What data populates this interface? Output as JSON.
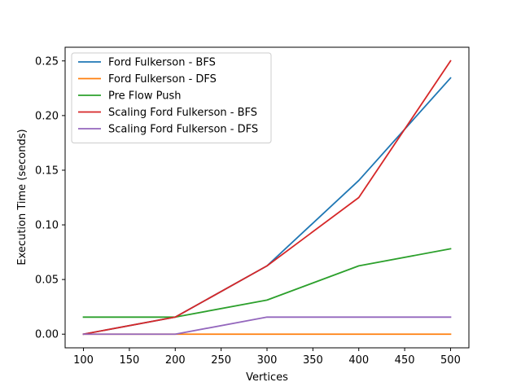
{
  "chart_data": {
    "type": "line",
    "title": "",
    "xlabel": "Vertices",
    "ylabel": "Execution Time (seconds)",
    "x": [
      100,
      200,
      300,
      400,
      500
    ],
    "xlim": [
      80,
      520
    ],
    "ylim": [
      -0.0125,
      0.2625
    ],
    "xticks": [
      100,
      150,
      200,
      250,
      300,
      350,
      400,
      450,
      500
    ],
    "yticks": [
      0.0,
      0.05,
      0.1,
      0.15,
      0.2,
      0.25
    ],
    "ytick_labels": [
      "0.00",
      "0.05",
      "0.10",
      "0.15",
      "0.20",
      "0.25"
    ],
    "grid": false,
    "legend_position": "top-left",
    "series": [
      {
        "name": "Ford Fulkerson - BFS",
        "color": "#1f77b4",
        "values": [
          0.0,
          0.0156,
          0.0625,
          0.1406,
          0.2344
        ]
      },
      {
        "name": "Ford Fulkerson - DFS",
        "color": "#ff7f0e",
        "values": [
          0.0,
          0.0,
          0.0,
          0.0,
          0.0
        ]
      },
      {
        "name": "Pre Flow Push",
        "color": "#2ca02c",
        "values": [
          0.0156,
          0.0156,
          0.0312,
          0.0625,
          0.0781
        ]
      },
      {
        "name": "Scaling Ford Fulkerson - BFS",
        "color": "#d62728",
        "values": [
          0.0,
          0.0156,
          0.0625,
          0.125,
          0.25
        ]
      },
      {
        "name": "Scaling Ford Fulkerson - DFS",
        "color": "#9467bd",
        "values": [
          0.0,
          0.0,
          0.0156,
          0.0156,
          0.0156
        ]
      }
    ]
  }
}
